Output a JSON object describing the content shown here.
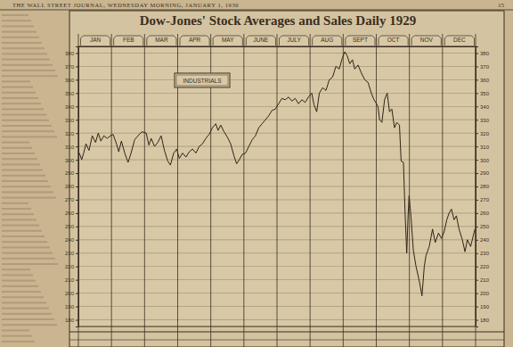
{
  "header": {
    "text": "THE WALL STREET JOURNAL, WEDNESDAY MORNING, JANUARY 1, 1930",
    "page": 15
  },
  "chart_data": {
    "type": "line",
    "title": "Dow-Jones' Stock Averages and Sales Daily 1929",
    "x": [
      0.03,
      0.1,
      0.16,
      0.23,
      0.32,
      0.42,
      0.52,
      0.6,
      0.68,
      0.77,
      0.87,
      0.97,
      1.05,
      1.15,
      1.22,
      1.3,
      1.4,
      1.5,
      1.58,
      1.7,
      1.8,
      1.92,
      2.05,
      2.13,
      2.2,
      2.3,
      2.4,
      2.5,
      2.6,
      2.7,
      2.78,
      2.88,
      2.97,
      3.05,
      3.15,
      3.25,
      3.35,
      3.45,
      3.55,
      3.65,
      3.75,
      3.85,
      3.95,
      4.05,
      4.15,
      4.22,
      4.3,
      4.4,
      4.5,
      4.6,
      4.7,
      4.78,
      4.86,
      4.95,
      5.05,
      5.15,
      5.25,
      5.35,
      5.45,
      5.55,
      5.65,
      5.75,
      5.85,
      5.95,
      6.05,
      6.15,
      6.25,
      6.35,
      6.45,
      6.55,
      6.65,
      6.75,
      6.85,
      6.95,
      7.05,
      7.12,
      7.2,
      7.28,
      7.38,
      7.48,
      7.58,
      7.68,
      7.78,
      7.88,
      7.97,
      8.05,
      8.12,
      8.2,
      8.28,
      8.35,
      8.45,
      8.55,
      8.65,
      8.75,
      8.85,
      8.93,
      8.98,
      9.05,
      9.1,
      9.17,
      9.25,
      9.33,
      9.4,
      9.47,
      9.55,
      9.62,
      9.7,
      9.75,
      9.82,
      9.87,
      9.92,
      9.96,
      9.99,
      10.05,
      10.12,
      10.2,
      10.3,
      10.38,
      10.45,
      10.5,
      10.6,
      10.7,
      10.78,
      10.88,
      10.97,
      11.05,
      11.13,
      11.2,
      11.27,
      11.35,
      11.42,
      11.5,
      11.6,
      11.68,
      11.75,
      11.85,
      11.92,
      11.98
    ],
    "series": [
      {
        "name": "INDUSTRIALS",
        "color": "#2e2418",
        "values": [
          305,
          300,
          305,
          312,
          307,
          318,
          313,
          320,
          314,
          318,
          316,
          318,
          319,
          312,
          306,
          314,
          305,
          298,
          304,
          315,
          318,
          321,
          320,
          311,
          316,
          310,
          313,
          318,
          307,
          299,
          296,
          305,
          308,
          301,
          305,
          302,
          306,
          308,
          305,
          310,
          312,
          316,
          319,
          324,
          327,
          322,
          326,
          321,
          317,
          312,
          303,
          297,
          300,
          304,
          305,
          310,
          315,
          318,
          324,
          327,
          330,
          333,
          337,
          338,
          342,
          346,
          345,
          347,
          344,
          346,
          342,
          345,
          343,
          347,
          350,
          341,
          336,
          350,
          354,
          352,
          360,
          362,
          370,
          368,
          376,
          381,
          378,
          372,
          375,
          368,
          371,
          365,
          360,
          358,
          350,
          345,
          343,
          340,
          330,
          328,
          345,
          350,
          336,
          338,
          324,
          328,
          326,
          299,
          298,
          260,
          230,
          258,
          273,
          257,
          232,
          220,
          209,
          198,
          220,
          228,
          235,
          248,
          238,
          245,
          241,
          246,
          255,
          260,
          263,
          255,
          258,
          248,
          240,
          231,
          240,
          235,
          242,
          248
        ]
      }
    ],
    "xlim": [
      0,
      12
    ],
    "xticks": [
      {
        "value": 0.5,
        "label": "JAN"
      },
      {
        "value": 1.5,
        "label": "FEB"
      },
      {
        "value": 2.5,
        "label": "MAR"
      },
      {
        "value": 3.5,
        "label": "APR"
      },
      {
        "value": 4.5,
        "label": "MAY"
      },
      {
        "value": 5.5,
        "label": "JUNE"
      },
      {
        "value": 6.5,
        "label": "JULY"
      },
      {
        "value": 7.5,
        "label": "AUG"
      },
      {
        "value": 8.5,
        "label": "SEPT"
      },
      {
        "value": 9.5,
        "label": "OCT"
      },
      {
        "value": 10.5,
        "label": "NOV"
      },
      {
        "value": 11.5,
        "label": "DEC"
      }
    ],
    "ylim": [
      175,
      385
    ],
    "yticks": [
      180,
      190,
      200,
      210,
      220,
      230,
      240,
      250,
      260,
      270,
      280,
      290,
      300,
      310,
      320,
      330,
      340,
      350,
      360,
      370,
      380
    ],
    "grid": true
  }
}
